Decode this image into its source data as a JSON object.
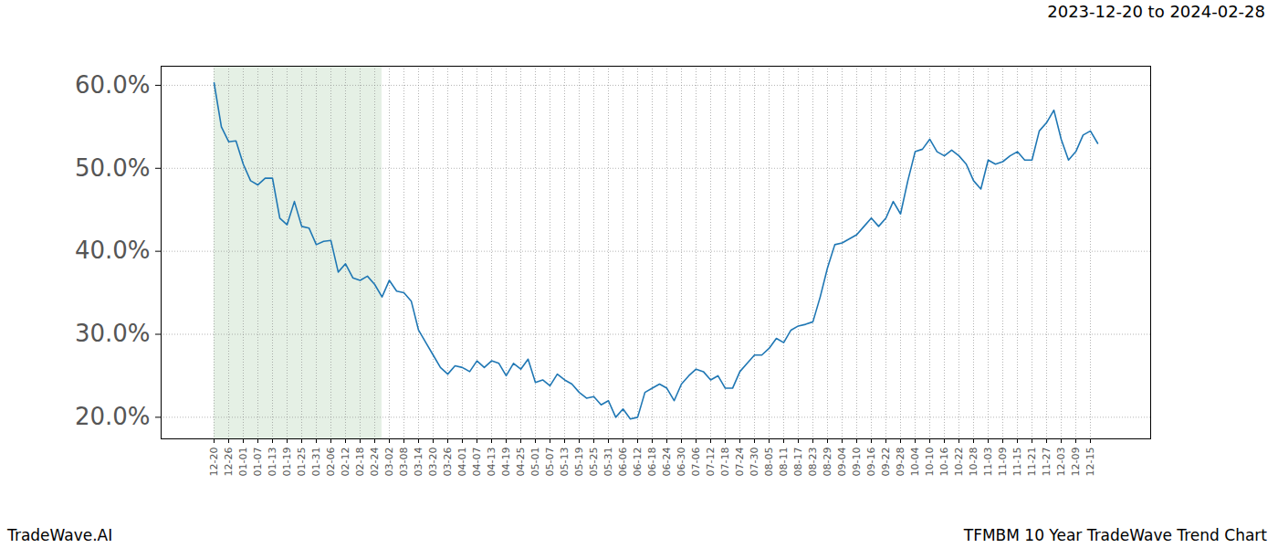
{
  "chart_data": {
    "type": "line",
    "title": "2023-12-20 to 2024-02-28",
    "footer_left": "TradeWave.AI",
    "footer_right": "TFMBM 10 Year TradeWave Trend Chart",
    "categories": [
      "12-20",
      null,
      "12-26",
      null,
      "01-01",
      null,
      "01-07",
      null,
      "01-13",
      null,
      "01-19",
      null,
      "01-25",
      null,
      "01-31",
      null,
      "02-06",
      null,
      "02-12",
      null,
      "02-18",
      null,
      "02-24",
      null,
      "03-02",
      null,
      "03-08",
      null,
      "03-14",
      null,
      "03-20",
      null,
      "03-26",
      null,
      "04-01",
      null,
      "04-07",
      null,
      "04-13",
      null,
      "04-19",
      null,
      "04-25",
      null,
      "05-01",
      null,
      "05-07",
      null,
      "05-13",
      null,
      "05-19",
      null,
      "05-25",
      null,
      "05-31",
      null,
      "06-06",
      null,
      "06-12",
      null,
      "06-18",
      null,
      "06-24",
      null,
      "06-30",
      null,
      "07-06",
      null,
      "07-12",
      null,
      "07-18",
      null,
      "07-24",
      null,
      "07-30",
      null,
      "08-05",
      null,
      "08-11",
      null,
      "08-17",
      null,
      "08-23",
      null,
      "08-29",
      null,
      "09-04",
      null,
      "09-10",
      null,
      "09-16",
      null,
      "09-22",
      null,
      "09-28",
      null,
      "10-04",
      null,
      "10-10",
      null,
      "10-16",
      null,
      "10-22",
      null,
      "10-28",
      null,
      "11-03",
      null,
      "11-09",
      null,
      "11-15",
      null,
      "11-21",
      null,
      "11-27",
      null,
      "12-03",
      null,
      "12-09",
      null,
      "12-15",
      null
    ],
    "values": [
      60.3,
      55.0,
      53.2,
      53.3,
      50.5,
      48.5,
      48.0,
      48.8,
      48.8,
      44.0,
      43.2,
      46.0,
      43.0,
      42.8,
      40.8,
      41.2,
      41.3,
      37.5,
      38.5,
      36.8,
      36.5,
      37.0,
      36.0,
      34.5,
      36.5,
      35.2,
      35.0,
      34.0,
      30.5,
      29.0,
      27.5,
      26.0,
      25.2,
      26.2,
      26.0,
      25.5,
      26.8,
      26.0,
      26.8,
      26.5,
      25.0,
      26.5,
      25.8,
      27.0,
      24.2,
      24.5,
      23.8,
      25.2,
      24.5,
      24.0,
      23.0,
      22.3,
      22.5,
      21.5,
      22.0,
      20.0,
      21.0,
      19.8,
      20.0,
      23.0,
      23.5,
      24.0,
      23.5,
      22.0,
      24.0,
      25.0,
      25.8,
      25.5,
      24.5,
      25.0,
      23.5,
      23.5,
      25.5,
      26.5,
      27.5,
      27.5,
      28.3,
      29.5,
      29.0,
      30.5,
      31.0,
      31.2,
      31.5,
      34.5,
      38.0,
      40.8,
      41.0,
      41.5,
      42.0,
      43.0,
      44.0,
      43.0,
      44.0,
      46.0,
      44.5,
      48.5,
      52.0,
      52.3,
      53.5,
      52.0,
      51.5,
      52.2,
      51.5,
      50.5,
      48.5,
      47.5,
      51.0,
      50.5,
      50.8,
      51.5,
      52.0,
      51.0,
      51.0,
      54.5,
      55.5,
      57.0,
      53.5,
      51.0,
      52.0,
      54.0,
      54.5,
      53.0
    ],
    "color": "#1f77b4",
    "ylim": [
      17.4,
      62.3
    ],
    "yticks": [
      {
        "value": 20,
        "label": "20.0%"
      },
      {
        "value": 30,
        "label": "30.0%"
      },
      {
        "value": 40,
        "label": "40.0%"
      },
      {
        "value": 50,
        "label": "50.0%"
      },
      {
        "value": 60,
        "label": "60.0%"
      }
    ],
    "grid": true,
    "highlight": {
      "from": 0,
      "to": 23,
      "color": "#e5f0e5"
    }
  }
}
